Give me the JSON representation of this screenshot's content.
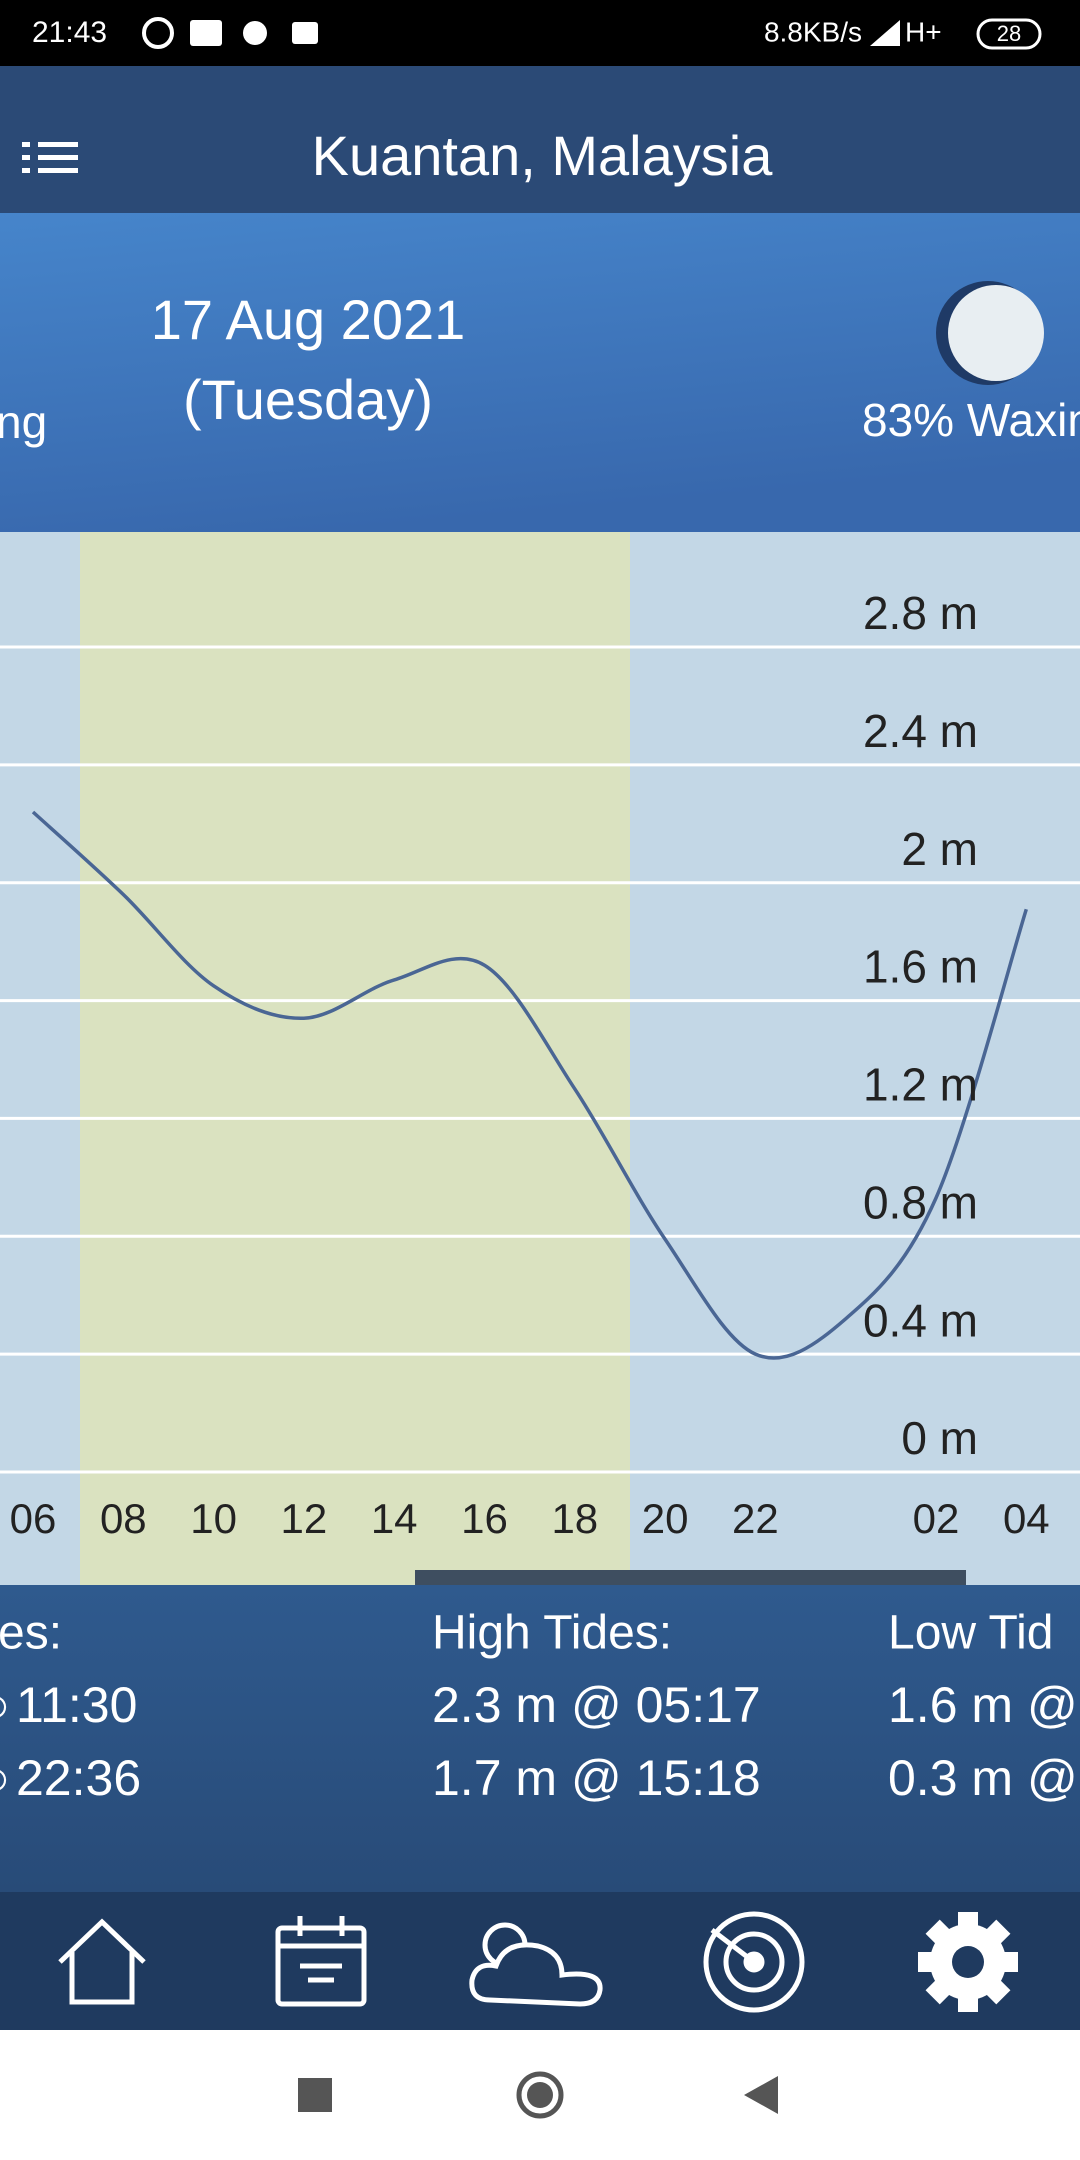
{
  "status_bar": {
    "time": "21:43",
    "network_speed": "8.8KB/s",
    "network": "H+",
    "battery": "28"
  },
  "header": {
    "title": "Kuantan, Malaysia"
  },
  "day": {
    "date": "17 Aug 2021",
    "weekday": "(Tuesday)",
    "prev_moon_phase": "ng",
    "moon_phase": "83% Waxin"
  },
  "chart_data": {
    "type": "line",
    "categories": [
      "06",
      "08",
      "10",
      "12",
      "14",
      "16",
      "18",
      "20",
      "22",
      null,
      "02",
      "04"
    ],
    "series": [
      {
        "color": "#4a6694",
        "values": [
          2.24,
          1.96,
          1.65,
          1.54,
          1.67,
          1.72,
          1.3,
          0.79,
          0.4,
          0.52,
          0.93,
          1.91
        ]
      }
    ],
    "ylim": [
      0,
      2.8
    ],
    "yticks": [
      {
        "value": 0,
        "label": "0 m"
      },
      {
        "value": 0.4,
        "label": "0.4 m"
      },
      {
        "value": 0.8,
        "label": "0.8 m"
      },
      {
        "value": 1.2,
        "label": "1.2 m"
      },
      {
        "value": 1.6,
        "label": "1.6 m"
      },
      {
        "value": 2,
        "label": "2 m"
      },
      {
        "value": 2.4,
        "label": "2.4 m"
      },
      {
        "value": 2.8,
        "label": "2.8 m"
      }
    ],
    "grid": true
  },
  "tides": {
    "previous": {
      "title": "es:",
      "rows": [
        "11:30",
        "22:36"
      ]
    },
    "high": {
      "title": "High Tides:",
      "rows": [
        "2.3 m @ 05:17",
        "1.7 m @ 15:18"
      ]
    },
    "low": {
      "title": "Low Tid",
      "rows": [
        "1.6 m @",
        "0.3 m @"
      ]
    }
  }
}
